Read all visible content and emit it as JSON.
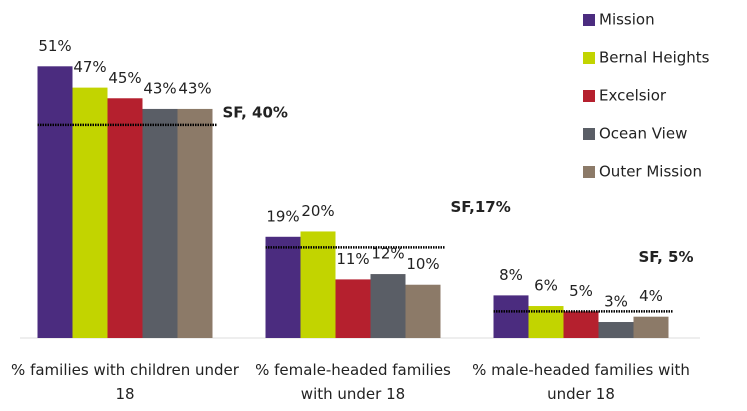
{
  "chart_data": {
    "type": "bar",
    "categories": [
      "% families with children under 18",
      "% female-headed families with under 18",
      "% male-headed families with under 18"
    ],
    "series": [
      {
        "name": "Mission",
        "color": "#4b2c7f",
        "values": [
          51,
          19,
          8
        ],
        "value_labels": [
          "51%",
          "19%",
          "8%"
        ]
      },
      {
        "name": "Bernal Heights",
        "color": "#c2d400",
        "values": [
          47,
          20,
          6
        ],
        "value_labels": [
          "47%",
          "20%",
          "6%"
        ]
      },
      {
        "name": "Excelsior",
        "color": "#b5202e",
        "values": [
          45,
          11,
          5
        ],
        "value_labels": [
          "45%",
          "11%",
          "5%"
        ]
      },
      {
        "name": "Ocean View",
        "color": "#5a5e66",
        "values": [
          43,
          12,
          3
        ],
        "value_labels": [
          "43%",
          "12%",
          "3%"
        ]
      },
      {
        "name": "Outer Mission",
        "color": "#8c7a68",
        "values": [
          43,
          10,
          4
        ],
        "value_labels": [
          "43%",
          "10%",
          "4%"
        ]
      }
    ],
    "reference_lines": [
      {
        "value": 40,
        "label": "SF, 40%"
      },
      {
        "value": 17,
        "label": "SF,17%"
      },
      {
        "value": 5,
        "label": "SF, 5%"
      }
    ],
    "ylim": [
      0,
      55
    ],
    "legend": "top-right"
  }
}
